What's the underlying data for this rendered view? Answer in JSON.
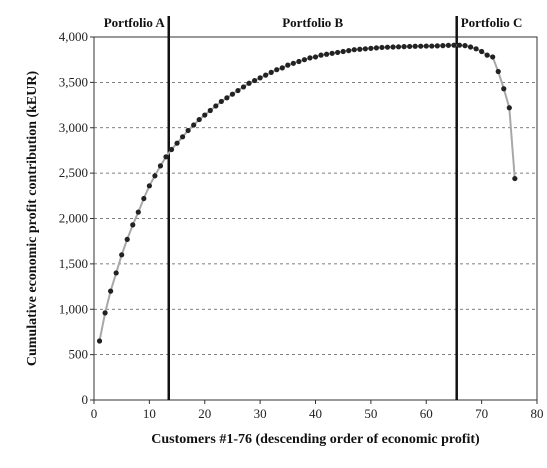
{
  "chart_data": {
    "type": "line",
    "xlabel": "Customers #1-76 (descending order of economic profit)",
    "ylabel": "Cumulative economic profit contribution (kEUR)",
    "xlim": [
      0,
      80
    ],
    "ylim": [
      0,
      4000
    ],
    "x_ticks": [
      "0",
      "10",
      "20",
      "30",
      "40",
      "50",
      "60",
      "70",
      "80"
    ],
    "y_ticks": [
      "0",
      "500",
      "1,000",
      "1,500",
      "2,000",
      "2,500",
      "3,000",
      "3,500",
      "4,000"
    ],
    "grid": "horizontal dashed",
    "regions": [
      {
        "label": "Portfolio A",
        "from": 0,
        "to": 13.5
      },
      {
        "label": "Portfolio B",
        "from": 13.5,
        "to": 65.5
      },
      {
        "label": "Portfolio C",
        "from": 65.5,
        "to": 80
      }
    ],
    "dividers": [
      13.5,
      65.5
    ],
    "series": [
      {
        "line_color": "#a8a8a8",
        "marker_color": "#222222",
        "x": [
          1,
          2,
          3,
          4,
          5,
          6,
          7,
          8,
          9,
          10,
          11,
          12,
          13,
          14,
          15,
          16,
          17,
          18,
          19,
          20,
          21,
          22,
          23,
          24,
          25,
          26,
          27,
          28,
          29,
          30,
          31,
          32,
          33,
          34,
          35,
          36,
          37,
          38,
          39,
          40,
          41,
          42,
          43,
          44,
          45,
          46,
          47,
          48,
          49,
          50,
          51,
          52,
          53,
          54,
          55,
          56,
          57,
          58,
          59,
          60,
          61,
          62,
          63,
          64,
          65,
          66,
          67,
          68,
          69,
          70,
          71,
          72,
          73,
          74,
          75,
          76
        ],
        "y": [
          650,
          960,
          1200,
          1400,
          1600,
          1770,
          1930,
          2070,
          2220,
          2360,
          2470,
          2580,
          2680,
          2760,
          2830,
          2900,
          2970,
          3030,
          3090,
          3140,
          3190,
          3240,
          3290,
          3330,
          3370,
          3410,
          3450,
          3490,
          3520,
          3550,
          3580,
          3610,
          3640,
          3660,
          3690,
          3710,
          3730,
          3750,
          3770,
          3780,
          3800,
          3810,
          3820,
          3830,
          3840,
          3850,
          3860,
          3865,
          3870,
          3875,
          3880,
          3885,
          3888,
          3890,
          3892,
          3894,
          3896,
          3898,
          3899,
          3900,
          3900,
          3902,
          3905,
          3908,
          3910,
          3910,
          3905,
          3890,
          3870,
          3840,
          3800,
          3780,
          3620,
          3430,
          3220,
          2440
        ]
      }
    ]
  }
}
